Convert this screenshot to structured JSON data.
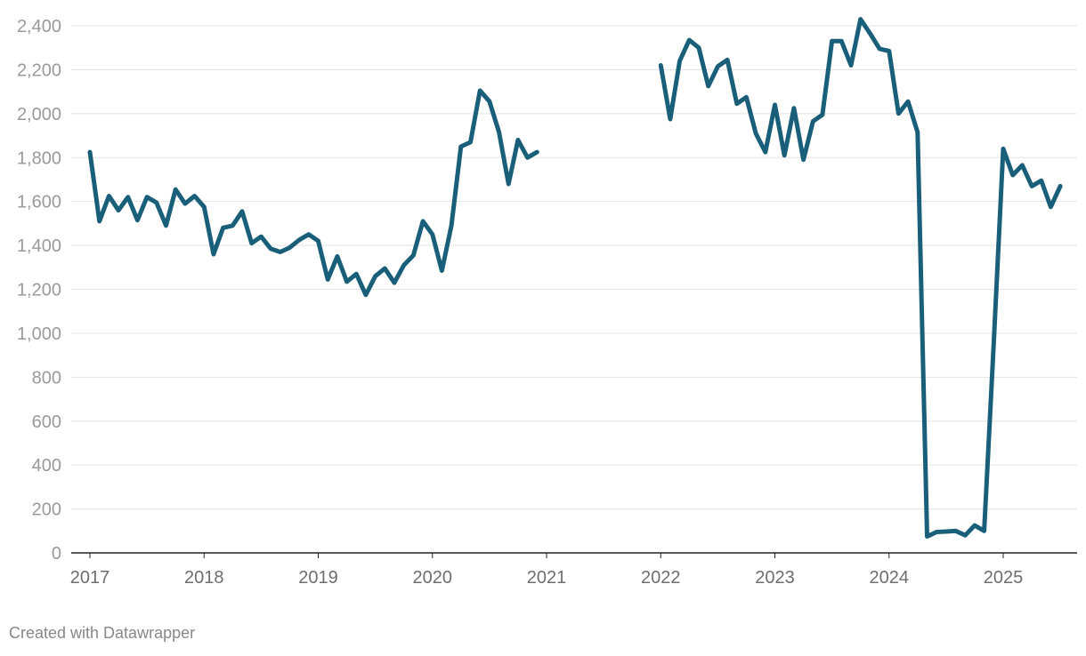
{
  "chart_data": {
    "type": "line",
    "title": "",
    "xlabel": "",
    "ylabel": "",
    "ylim": [
      0,
      2400
    ],
    "y_ticks": [
      0,
      200,
      400,
      600,
      800,
      1000,
      1200,
      1400,
      1600,
      1800,
      2000,
      2200,
      2400
    ],
    "y_tick_labels": [
      "0",
      "200",
      "400",
      "600",
      "800",
      "1,000",
      "1,200",
      "1,400",
      "1,600",
      "1,800",
      "2,000",
      "2,200",
      "2,400"
    ],
    "x_tick_labels": [
      "2017",
      "2018",
      "2019",
      "2020",
      "2021",
      "2022",
      "2023",
      "2024",
      "2025"
    ],
    "grid": "horizontal",
    "line_color": "#1a5f7a",
    "series": [
      {
        "segments": [
          {
            "start": "2017-01",
            "values": [
              1825,
              1510,
              1625,
              1560,
              1620,
              1515,
              1620,
              1595,
              1490,
              1655,
              1590,
              1625,
              1575,
              1360,
              1480,
              1490,
              1555,
              1410,
              1440,
              1385,
              1370,
              1390,
              1425,
              1450,
              1420,
              1245,
              1350,
              1235,
              1270,
              1175,
              1260,
              1295,
              1230,
              1310,
              1355,
              1510,
              1450,
              1285,
              1490,
              1850,
              1870,
              2105,
              2055,
              1915,
              1680,
              1880,
              1800,
              1825
            ]
          },
          {
            "start": "2022-01",
            "values": [
              2220,
              1975,
              2240,
              2335,
              2300,
              2125,
              2215,
              2245,
              2045,
              2075,
              1910,
              1825,
              2040,
              1810,
              2025,
              1790,
              1965,
              1995,
              2330,
              2330,
              2220,
              2430,
              2365,
              2295,
              2285,
              2000,
              2055,
              1915,
              75,
              95,
              97,
              100,
              80,
              125,
              100,
              950,
              1840,
              1720,
              1765,
              1670,
              1695,
              1575,
              1670
            ]
          }
        ]
      }
    ]
  },
  "footer": {
    "credit": "Created with Datawrapper"
  }
}
